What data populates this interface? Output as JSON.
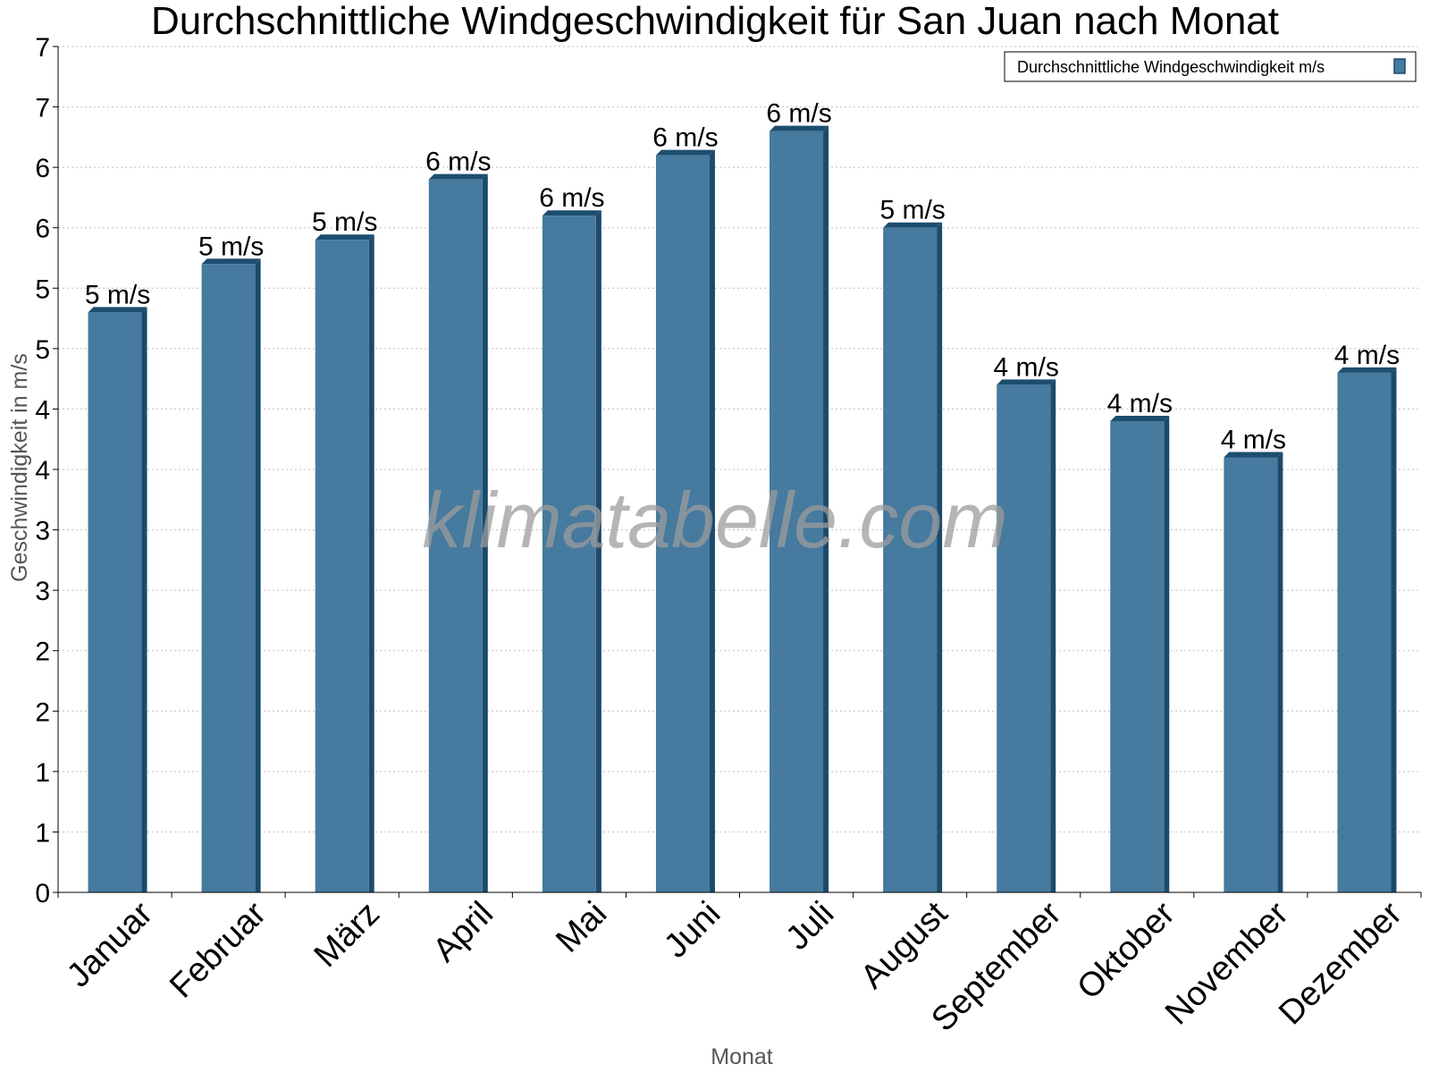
{
  "chart_data": {
    "type": "bar",
    "title": "Durchschnittliche Windgeschwindigkeit für San Juan nach Monat",
    "xlabel": "Monat",
    "ylabel": "Geschwindigkeit in m/s",
    "categories": [
      "Januar",
      "Februar",
      "März",
      "April",
      "Mai",
      "Juni",
      "Juli",
      "August",
      "September",
      "Oktober",
      "November",
      "Dezember"
    ],
    "series": [
      {
        "name": "Durchschnittliche Windgeschwindigkeit m/s",
        "values": [
          4.8,
          5.2,
          5.4,
          5.9,
          5.6,
          6.1,
          6.3,
          5.5,
          4.2,
          3.9,
          3.6,
          4.3
        ],
        "labels": [
          "5 m/s",
          "5 m/s",
          "5 m/s",
          "6 m/s",
          "6 m/s",
          "6 m/s",
          "6 m/s",
          "5 m/s",
          "4 m/s",
          "4 m/s",
          "4 m/s",
          "4 m/s"
        ]
      }
    ],
    "ylim": [
      0,
      7
    ],
    "y_ticks": [
      0,
      0.5,
      1,
      1.5,
      2,
      2.5,
      3,
      3.5,
      4,
      4.5,
      5,
      5.5,
      6,
      6.5,
      7
    ],
    "y_tick_labels": [
      "0",
      "1",
      "1",
      "2",
      "2",
      "3",
      "3",
      "4",
      "4",
      "5",
      "5",
      "6",
      "6",
      "7",
      "7"
    ],
    "grid": true,
    "legend_position": "top-right",
    "colors": {
      "bar": "#467a9e",
      "bar_side": "#1b4a6b",
      "bar_top": "#1d4e70"
    },
    "watermark": "klimatabelle.com"
  }
}
